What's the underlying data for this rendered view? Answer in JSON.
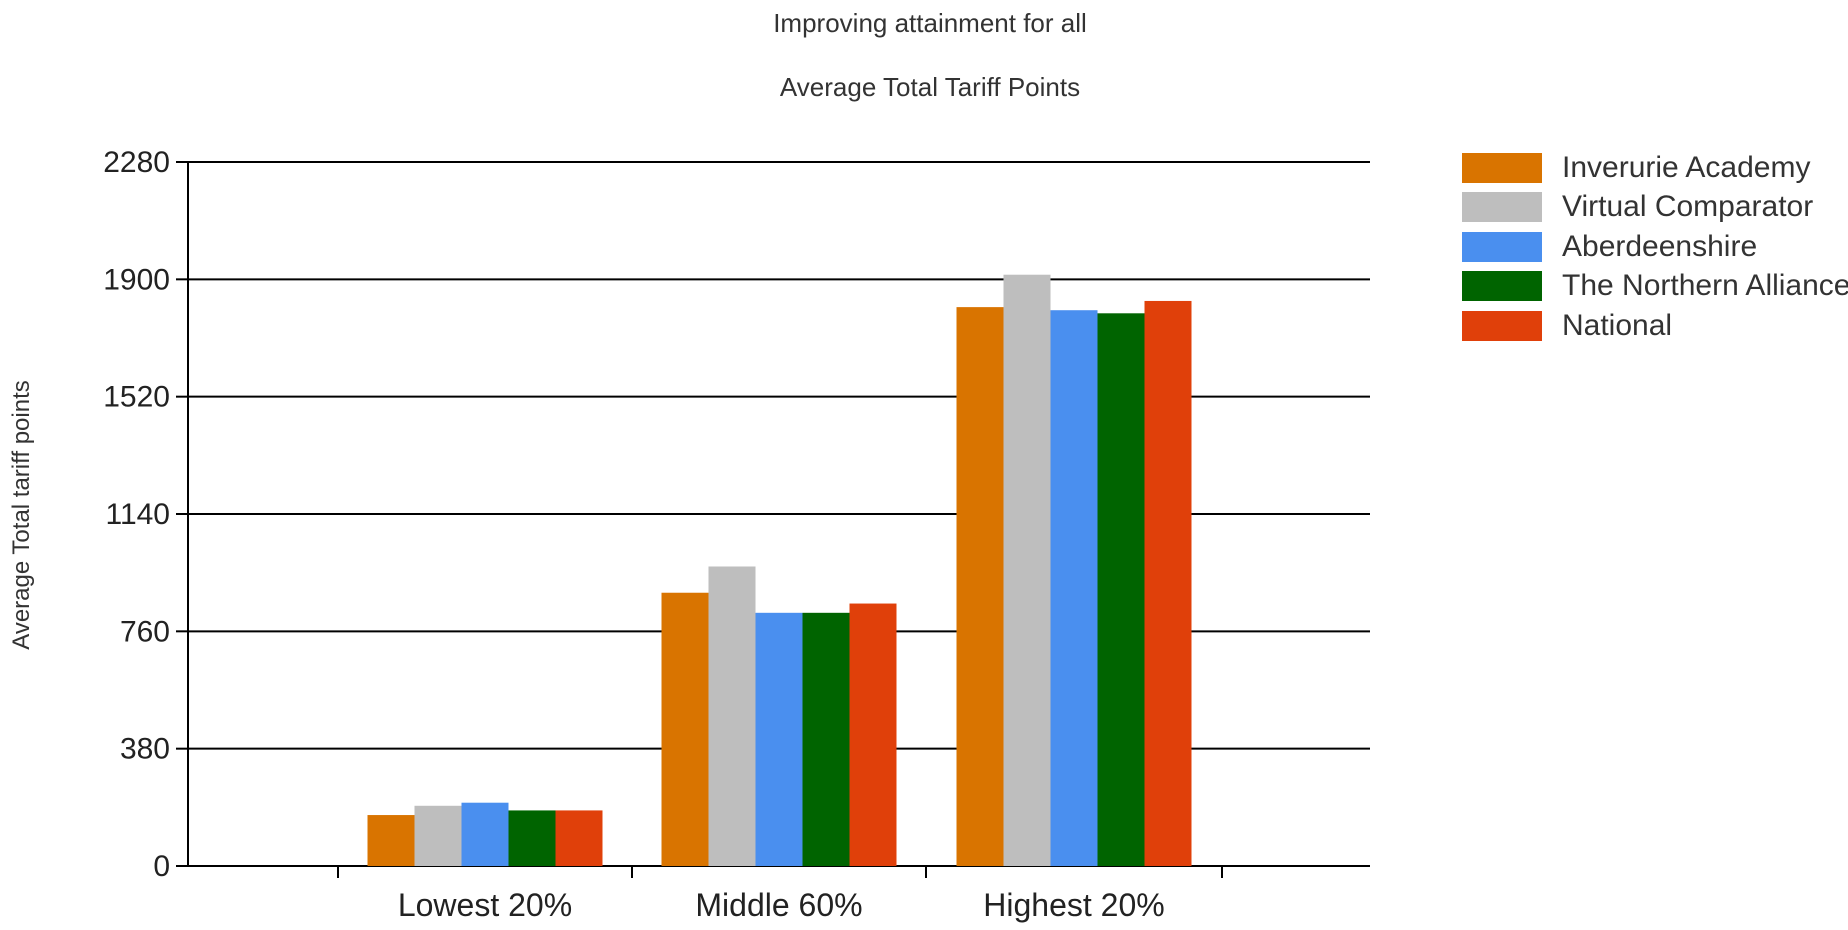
{
  "chart_data": {
    "type": "bar",
    "title": "Improving attainment for all",
    "subtitle": "Average Total Tariff Points",
    "xlabel": "",
    "ylabel": "Average Total tariff points",
    "categories": [
      "Lowest 20%",
      "Middle 60%",
      "Highest 20%"
    ],
    "yticks": [
      "0",
      "380",
      "760",
      "1140",
      "1520",
      "1900",
      "2280"
    ],
    "ylim": [
      0,
      2280
    ],
    "grid": true,
    "legend_position": "top-right",
    "series": [
      {
        "name": "Inverurie Academy",
        "color": "#D97400",
        "values": [
          165,
          885,
          1810
        ]
      },
      {
        "name": "Virtual Comparator",
        "color": "#BEBEBE",
        "values": [
          195,
          970,
          1915
        ]
      },
      {
        "name": "Aberdeenshire",
        "color": "#4A8FEF",
        "values": [
          205,
          820,
          1800
        ]
      },
      {
        "name": "The Northern Alliance",
        "color": "#006400",
        "values": [
          180,
          820,
          1790
        ]
      },
      {
        "name": "National",
        "color": "#E0400A",
        "values": [
          180,
          850,
          1830
        ]
      }
    ]
  }
}
